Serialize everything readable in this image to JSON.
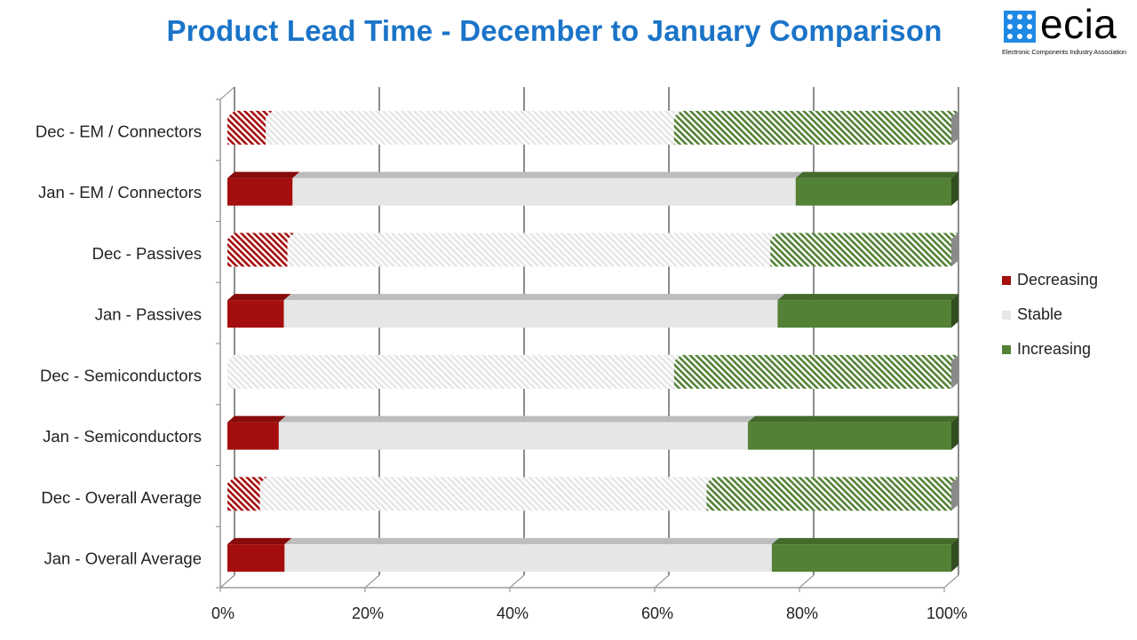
{
  "header": {
    "title": "Product Lead Time - December to January Comparison"
  },
  "logo": {
    "wordmark": "ecia",
    "tagline": "Electronic Components Industry Association",
    "color": "#1e88e5"
  },
  "chart_data": {
    "type": "bar",
    "orientation": "horizontal",
    "stacked": "percent",
    "style": "3d",
    "title": "Product Lead Time - December to January Comparison",
    "xlabel": "",
    "ylabel": "",
    "xlim": [
      0,
      100
    ],
    "x_ticks": [
      "0%",
      "20%",
      "40%",
      "60%",
      "80%",
      "100%"
    ],
    "categories": [
      "Dec - EM / Connectors",
      "Jan - EM / Connectors",
      "Dec - Passives",
      "Jan - Passives",
      "Dec - Semiconductors",
      "Jan - Semiconductors",
      "Dec - Overall Average",
      "Jan - Overall Average"
    ],
    "hatched": [
      true,
      false,
      true,
      false,
      true,
      false,
      true,
      false
    ],
    "series": [
      {
        "name": "Decreasing",
        "color": "#a50e0e",
        "values": [
          5.3,
          9.0,
          8.3,
          7.8,
          0,
          7.1,
          4.5,
          7.9
        ]
      },
      {
        "name": "Stable",
        "color": "#e6e6e6",
        "values": [
          56.4,
          69.5,
          66.7,
          68.2,
          61.7,
          64.8,
          61.7,
          67.3
        ]
      },
      {
        "name": "Increasing",
        "color": "#538135",
        "values": [
          38.3,
          21.5,
          25.0,
          24.0,
          38.3,
          28.1,
          33.8,
          24.8
        ]
      }
    ],
    "legend_position": "right",
    "grid": "vertical"
  }
}
